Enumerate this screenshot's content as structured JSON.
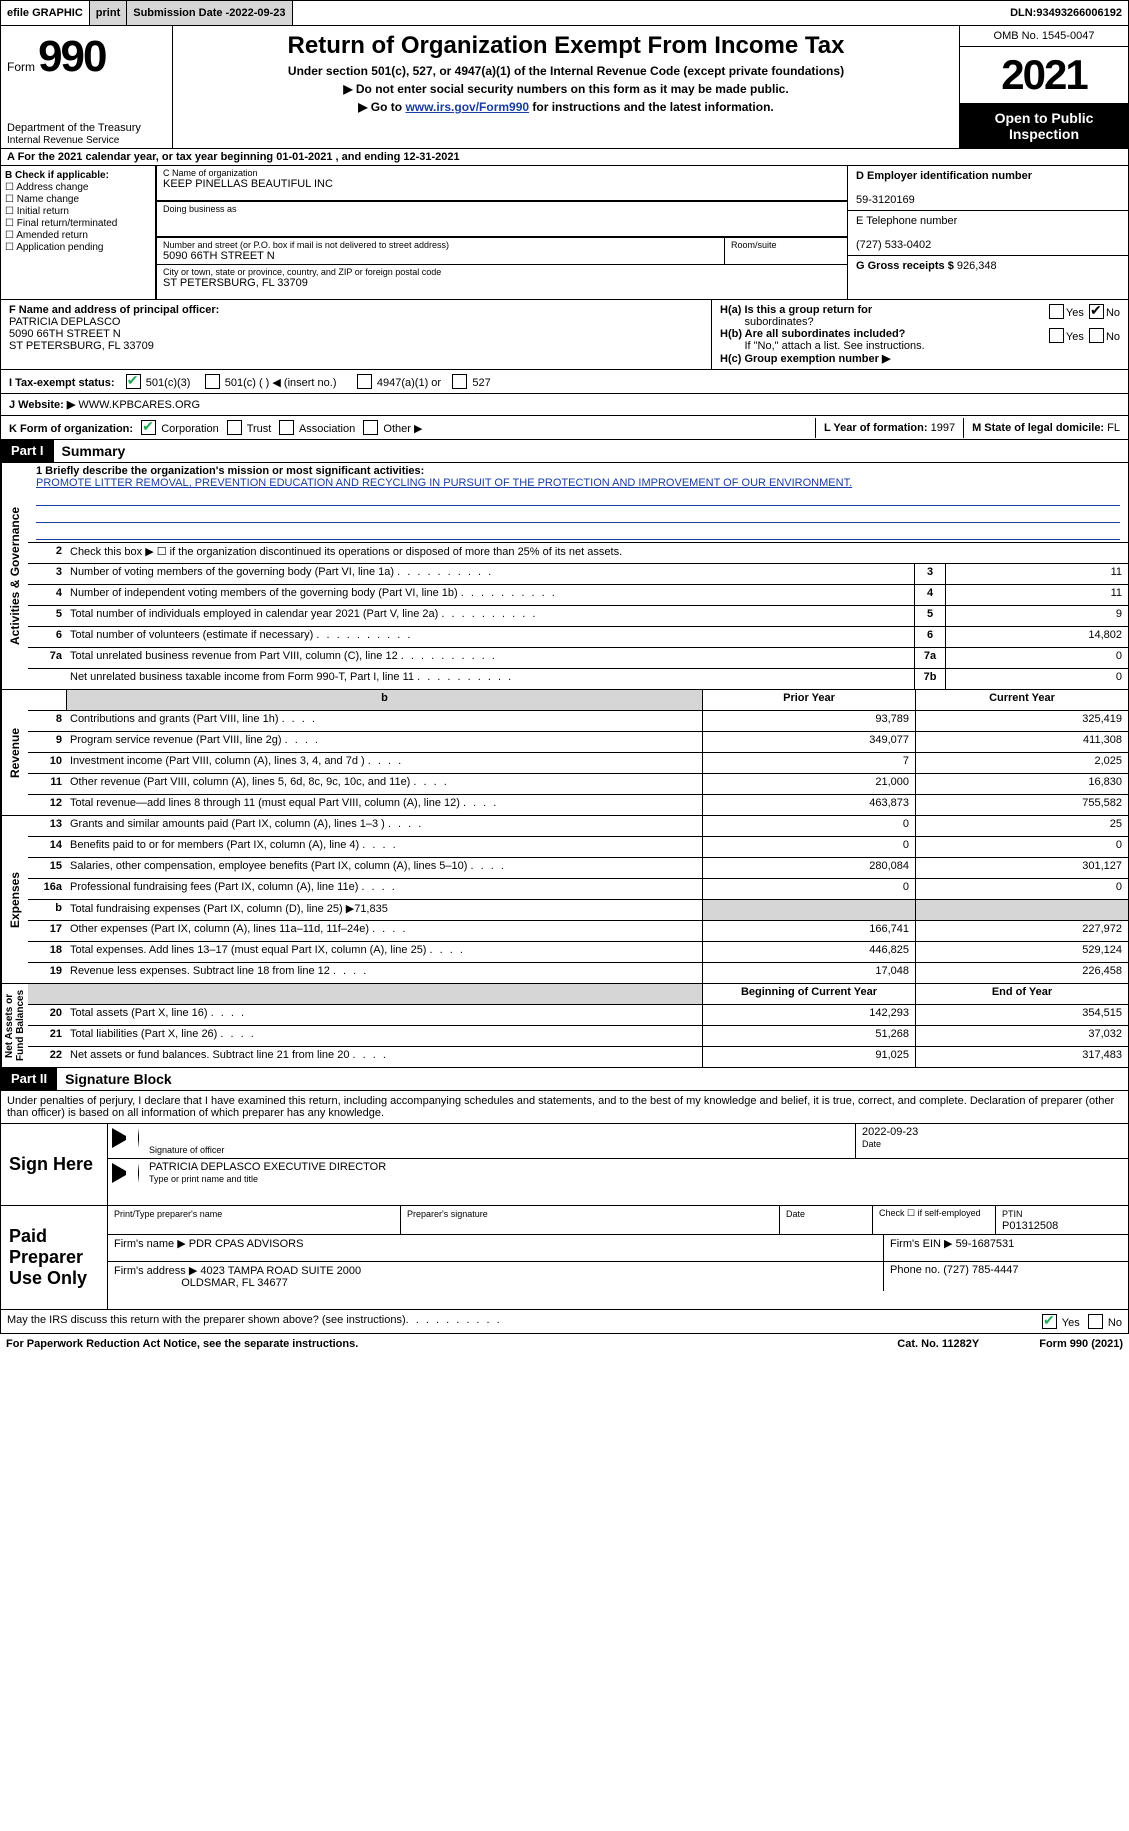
{
  "topbar": {
    "efile": "efile GRAPHIC",
    "print": "print",
    "subdate_lbl": "Submission Date - ",
    "subdate": "2022-09-23",
    "dln_lbl": "DLN: ",
    "dln": "93493266006192"
  },
  "header": {
    "form_word": "Form",
    "form_no": "990",
    "title": "Return of Organization Exempt From Income Tax",
    "subtitle": "Under section 501(c), 527, or 4947(a)(1) of the Internal Revenue Code (except private foundations)",
    "line1": "▶ Do not enter social security numbers on this form as it may be made public.",
    "line2a": "▶ Go to ",
    "line2_link": "www.irs.gov/Form990",
    "line2b": " for instructions and the latest information.",
    "dept1": "Department of the Treasury",
    "dept2": "Internal Revenue Service",
    "omb": "OMB No. 1545-0047",
    "year": "2021",
    "otp": "Open to Public Inspection"
  },
  "rowA": {
    "text_a": "A For the 2021 calendar year, or tax year beginning ",
    "begin": "01-01-2021",
    "text_b": "   , and ending ",
    "end": "12-31-2021"
  },
  "B": {
    "hdr": "B Check if applicable:",
    "items": [
      "Address change",
      "Name change",
      "Initial return",
      "Final return/terminated",
      "Amended return",
      "Application pending"
    ]
  },
  "C": {
    "name_lbl": "C Name of organization",
    "name": "KEEP PINELLAS BEAUTIFUL INC",
    "dba_lbl": "Doing business as",
    "dba": "",
    "addr_lbl": "Number and street (or P.O. box if mail is not delivered to street address)",
    "room_lbl": "Room/suite",
    "addr": "5090 66TH STREET N",
    "city_lbl": "City or town, state or province, country, and ZIP or foreign postal code",
    "city": "ST PETERSBURG, FL  33709"
  },
  "D": {
    "ein_lbl": "D Employer identification number",
    "ein": "59-3120169",
    "tel_lbl": "E Telephone number",
    "tel": "(727) 533-0402",
    "gross_lbl": "G Gross receipts $ ",
    "gross": "926,348"
  },
  "F": {
    "lbl": "F  Name and address of principal officer:",
    "name": "PATRICIA DEPLASCO",
    "addr1": "5090 66TH STREET N",
    "addr2": "ST PETERSBURG, FL  33709"
  },
  "H": {
    "a_lbl": "H(a)  Is this a group return for",
    "a_lbl2": "subordinates?",
    "a_no_checked": true,
    "b_lbl": "H(b)  Are all subordinates included?",
    "b_hint": "If \"No,\" attach a list. See instructions.",
    "c_lbl": "H(c)  Group exemption number ▶"
  },
  "I": {
    "lbl": "I   Tax-exempt status:",
    "opts": [
      "501(c)(3)",
      "501(c) (  ) ◀ (insert no.)",
      "4947(a)(1) or",
      "527"
    ],
    "checked": 0
  },
  "J": {
    "lbl": "J   Website: ▶",
    "val": "  WWW.KPBCARES.ORG"
  },
  "K": {
    "lbl": "K Form of organization:",
    "opts": [
      "Corporation",
      "Trust",
      "Association",
      "Other ▶"
    ],
    "checked": 0
  },
  "L": {
    "lbl": "L Year of formation: ",
    "val": "1997"
  },
  "M": {
    "lbl": "M State of legal domicile: ",
    "val": "FL"
  },
  "part1": {
    "hdr": "Part I",
    "title": "Summary"
  },
  "summary": {
    "l1_lbl": "1  Briefly describe the organization's mission or most significant activities:",
    "l1_val": "PROMOTE LITTER REMOVAL, PREVENTION EDUCATION AND RECYCLING IN PURSUIT OF THE PROTECTION AND IMPROVEMENT OF OUR ENVIRONMENT.",
    "l2": "Check this box ▶ ☐  if the organization discontinued its operations or disposed of more than 25% of its net assets.",
    "rows_top": [
      {
        "n": "3",
        "d": "Number of voting members of the governing body (Part VI, line 1a)",
        "b": "3",
        "v": "11"
      },
      {
        "n": "4",
        "d": "Number of independent voting members of the governing body (Part VI, line 1b)",
        "b": "4",
        "v": "11"
      },
      {
        "n": "5",
        "d": "Total number of individuals employed in calendar year 2021 (Part V, line 2a)",
        "b": "5",
        "v": "9"
      },
      {
        "n": "6",
        "d": "Total number of volunteers (estimate if necessary)",
        "b": "6",
        "v": "14,802"
      },
      {
        "n": "7a",
        "d": "Total unrelated business revenue from Part VIII, column (C), line 12",
        "b": "7a",
        "v": "0"
      },
      {
        "n": "",
        "d": "Net unrelated business taxable income from Form 990-T, Part I, line 11",
        "b": "7b",
        "v": "0"
      }
    ],
    "col_prior": "Prior Year",
    "col_curr": "Current Year",
    "revenue": [
      {
        "n": "8",
        "d": "Contributions and grants (Part VIII, line 1h)",
        "p": "93,789",
        "c": "325,419"
      },
      {
        "n": "9",
        "d": "Program service revenue (Part VIII, line 2g)",
        "p": "349,077",
        "c": "411,308"
      },
      {
        "n": "10",
        "d": "Investment income (Part VIII, column (A), lines 3, 4, and 7d )",
        "p": "7",
        "c": "2,025"
      },
      {
        "n": "11",
        "d": "Other revenue (Part VIII, column (A), lines 5, 6d, 8c, 9c, 10c, and 11e)",
        "p": "21,000",
        "c": "16,830"
      },
      {
        "n": "12",
        "d": "Total revenue—add lines 8 through 11 (must equal Part VIII, column (A), line 12)",
        "p": "463,873",
        "c": "755,582"
      }
    ],
    "expenses": [
      {
        "n": "13",
        "d": "Grants and similar amounts paid (Part IX, column (A), lines 1–3 )",
        "p": "0",
        "c": "25"
      },
      {
        "n": "14",
        "d": "Benefits paid to or for members (Part IX, column (A), line 4)",
        "p": "0",
        "c": "0"
      },
      {
        "n": "15",
        "d": "Salaries, other compensation, employee benefits (Part IX, column (A), lines 5–10)",
        "p": "280,084",
        "c": "301,127"
      },
      {
        "n": "16a",
        "d": "Professional fundraising fees (Part IX, column (A), line 11e)",
        "p": "0",
        "c": "0"
      },
      {
        "n": "b",
        "d": "Total fundraising expenses (Part IX, column (D), line 25) ▶71,835",
        "shade": true
      },
      {
        "n": "17",
        "d": "Other expenses (Part IX, column (A), lines 11a–11d, 11f–24e)",
        "p": "166,741",
        "c": "227,972"
      },
      {
        "n": "18",
        "d": "Total expenses. Add lines 13–17 (must equal Part IX, column (A), line 25)",
        "p": "446,825",
        "c": "529,124"
      },
      {
        "n": "19",
        "d": "Revenue less expenses. Subtract line 18 from line 12",
        "p": "17,048",
        "c": "226,458"
      }
    ],
    "net_hdr_l": "Beginning of Current Year",
    "net_hdr_r": "End of Year",
    "net": [
      {
        "n": "20",
        "d": "Total assets (Part X, line 16)",
        "p": "142,293",
        "c": "354,515"
      },
      {
        "n": "21",
        "d": "Total liabilities (Part X, line 26)",
        "p": "51,268",
        "c": "37,032"
      },
      {
        "n": "22",
        "d": "Net assets or fund balances. Subtract line 21 from line 20",
        "p": "91,025",
        "c": "317,483"
      }
    ]
  },
  "part2": {
    "hdr": "Part II",
    "title": "Signature Block"
  },
  "perjury": "Under penalties of perjury, I declare that I have examined this return, including accompanying schedules and statements, and to the best of my knowledge and belief, it is true, correct, and complete. Declaration of preparer (other than officer) is based on all information of which preparer has any knowledge.",
  "sign": {
    "here": "Sign Here",
    "sig_lbl": "Signature of officer",
    "date_lbl": "Date",
    "date": "2022-09-23",
    "name": "PATRICIA DEPLASCO  EXECUTIVE DIRECTOR",
    "name_lbl": "Type or print name and title"
  },
  "paid": {
    "title": "Paid Preparer Use Only",
    "r1": {
      "a": "Print/Type preparer's name",
      "b": "Preparer's signature",
      "c": "Date",
      "d": "Check ☐ if self-employed",
      "e_lbl": "PTIN",
      "e": "P01312508"
    },
    "r2": {
      "a": "Firm's name    ▶ ",
      "a_val": "PDR CPAS ADVISORS",
      "b": "Firm's EIN ▶ ",
      "b_val": "59-1687531"
    },
    "r3": {
      "a": "Firm's address ▶ ",
      "a_val": "4023 TAMPA ROAD SUITE 2000",
      "a_val2": "OLDSMAR, FL  34677",
      "b": "Phone no. ",
      "b_val": "(727) 785-4447"
    }
  },
  "discuss": {
    "q": "May the IRS discuss this return with the preparer shown above? (see instructions)",
    "yes_checked": true
  },
  "footer": {
    "l": "For Paperwork Reduction Act Notice, see the separate instructions.",
    "m": "Cat. No. 11282Y",
    "r": "Form 990 (2021)"
  }
}
